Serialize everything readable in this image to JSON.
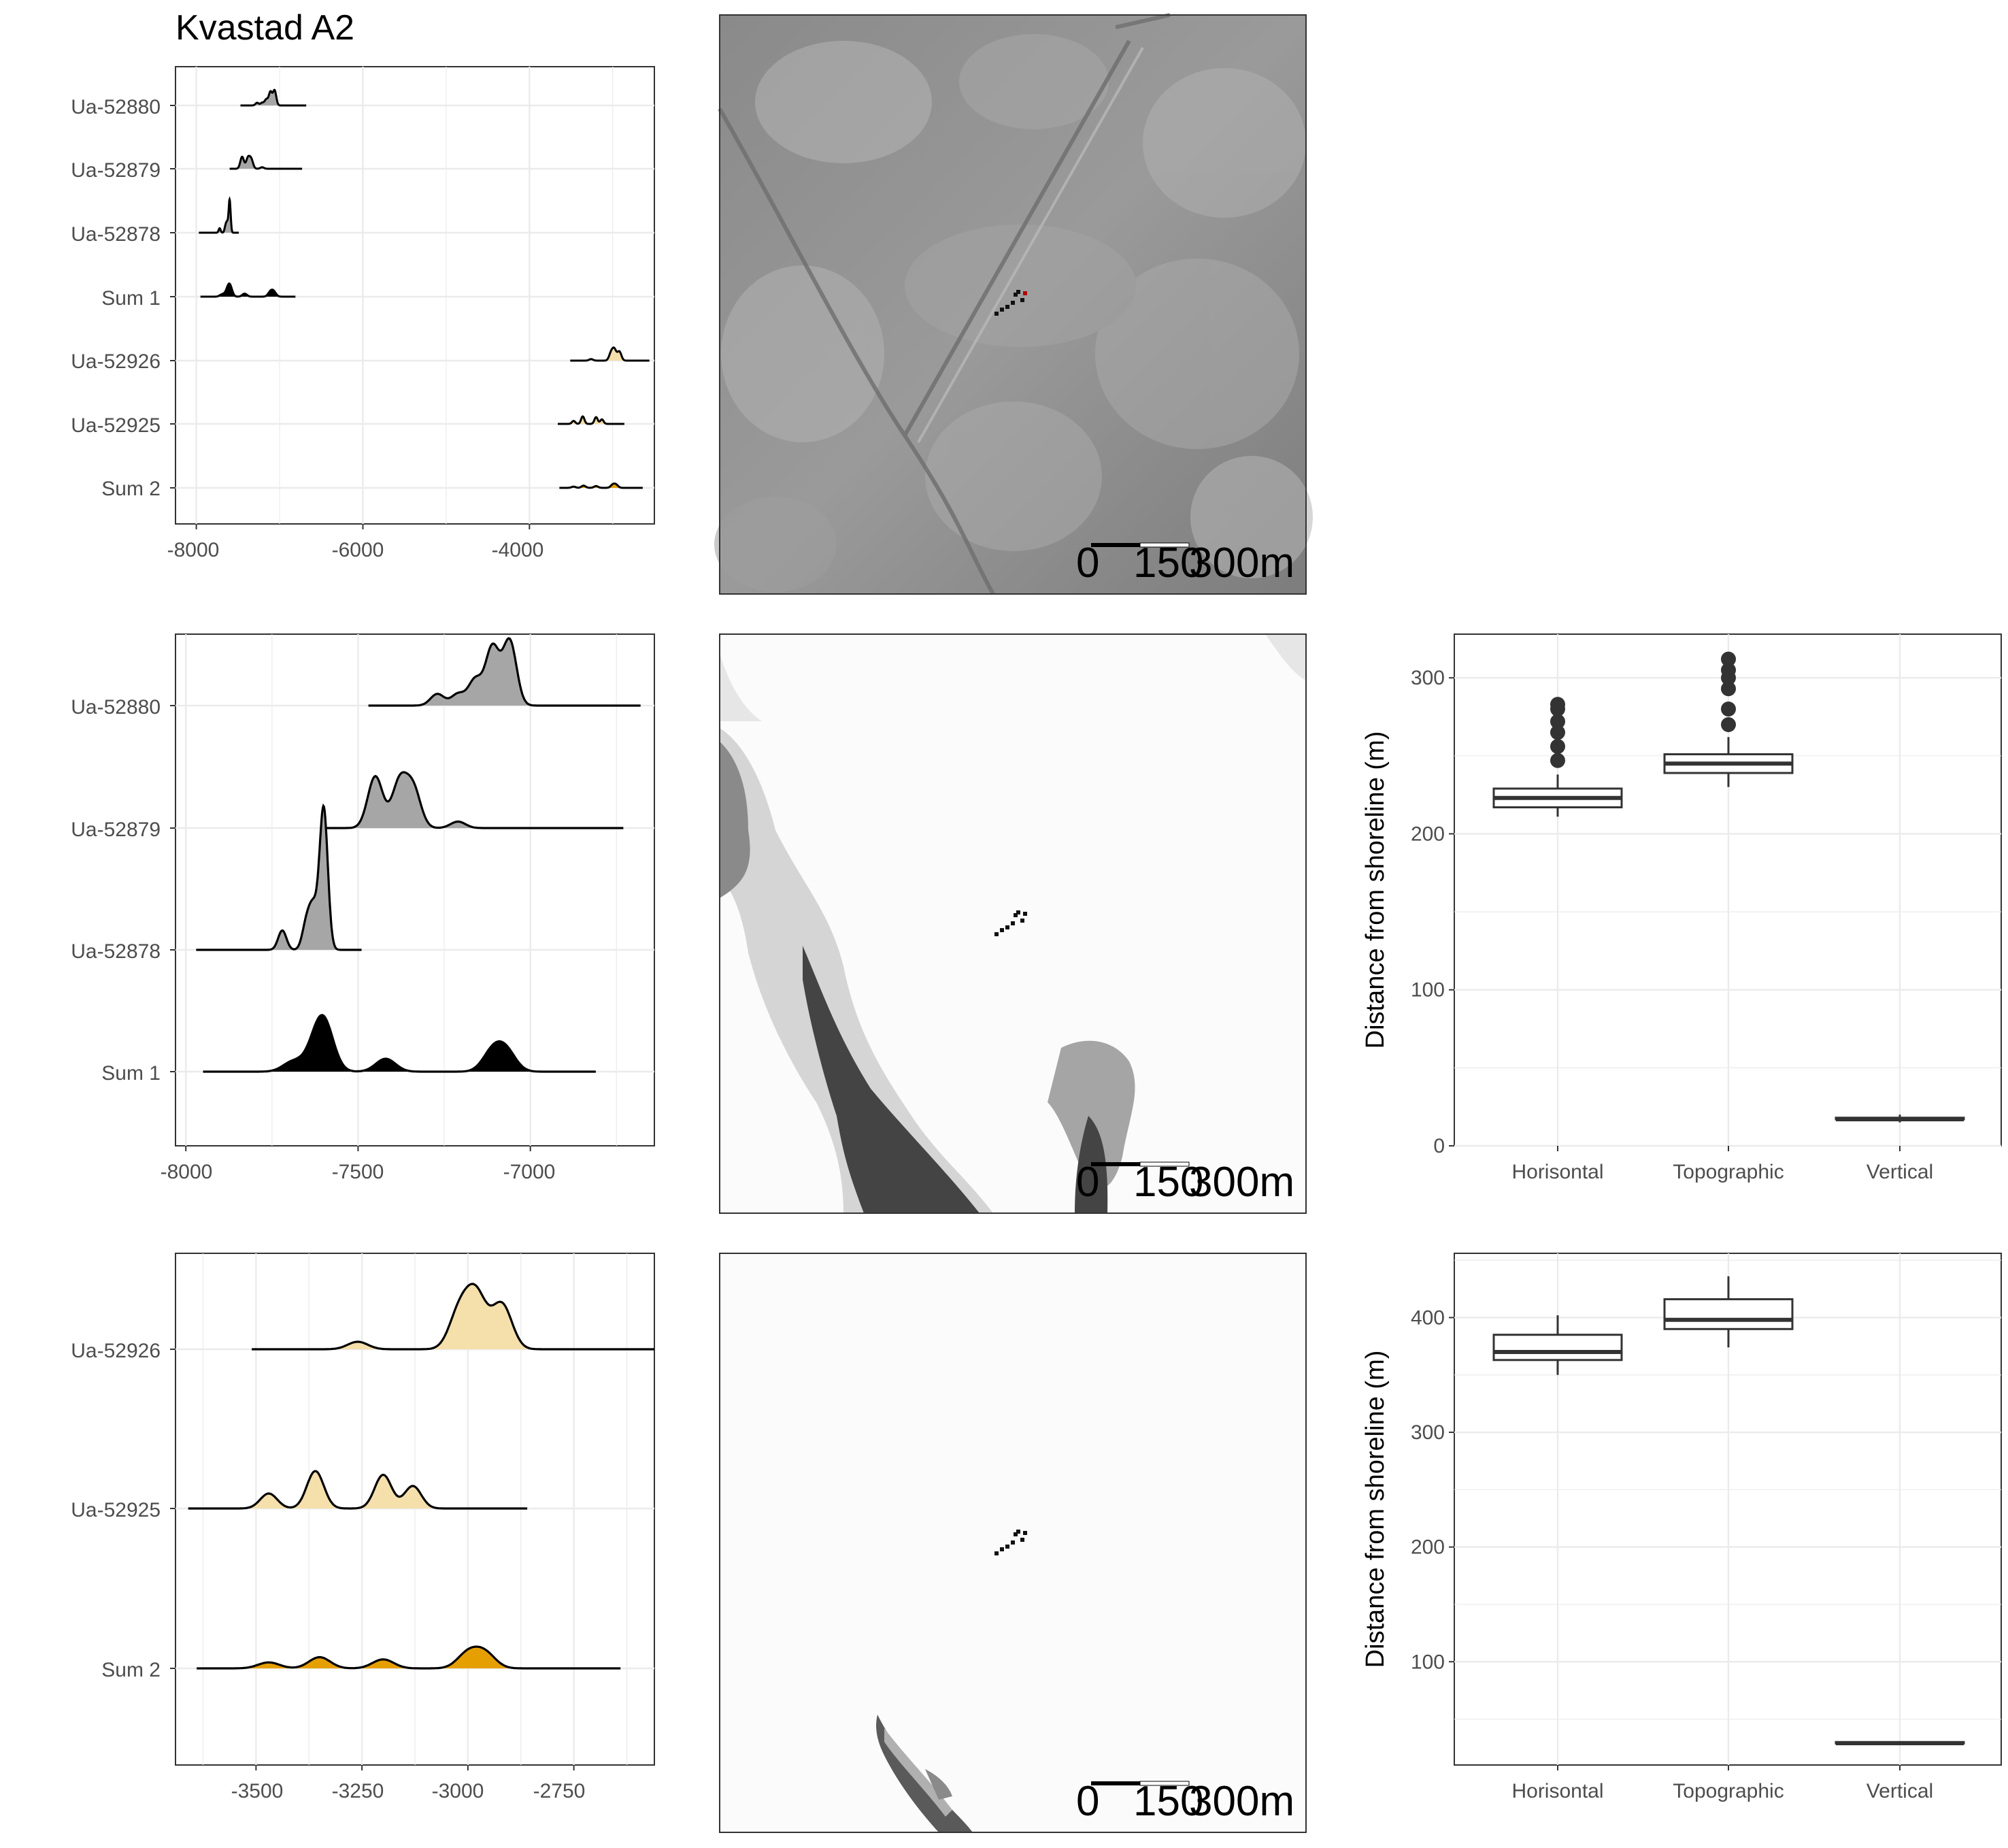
{
  "figure": {
    "title": "Kvastad A2"
  },
  "colors": {
    "group1_fill": "#a6a6a6",
    "group2_fill": "#f5dfaa",
    "sum1_fill": "#000000",
    "sum2_fill": "#e69f00",
    "grid": "#ebebeb",
    "hillshade_bg": "#8e8e8e",
    "water_dark": "#3c3c3c",
    "map_bg": "#fbfbfb"
  },
  "scalebar": {
    "labels": [
      "0",
      "150",
      "300m"
    ]
  },
  "chart_data": [
    {
      "panel": "row1-col1",
      "type": "ridgeline",
      "categories": [
        "Ua-52880",
        "Ua-52879",
        "Ua-52878",
        "Sum 1",
        "Ua-52926",
        "Ua-52925",
        "Sum 2"
      ],
      "xlim": [
        -8250,
        -2500
      ],
      "xticks": [
        -8000,
        -6000,
        -4000
      ],
      "grid": true
    },
    {
      "panel": "row2-col1",
      "type": "ridgeline",
      "categories": [
        "Ua-52880",
        "Ua-52879",
        "Ua-52878",
        "Sum 1"
      ],
      "series": [
        {
          "name": "Ua-52880",
          "range": [
            -7470,
            -6680
          ],
          "peaks": [
            [
              -7270,
              0.18
            ],
            [
              -7210,
              0.18
            ],
            [
              -7160,
              0.4
            ],
            [
              -7110,
              0.9
            ],
            [
              -7060,
              1.0
            ]
          ]
        },
        {
          "name": "Ua-52879",
          "range": [
            -7600,
            -6730
          ],
          "peaks": [
            [
              -7450,
              0.8
            ],
            [
              -7380,
              0.7
            ],
            [
              -7340,
              0.6
            ],
            [
              -7210,
              0.1
            ]
          ]
        },
        {
          "name": "Ua-52878",
          "range": [
            -7970,
            -7490
          ],
          "peaks": [
            [
              -7720,
              0.3
            ],
            [
              -7650,
              0.4
            ],
            [
              -7630,
              0.6
            ],
            [
              -7600,
              2.2
            ]
          ]
        },
        {
          "name": "Sum 1",
          "range": [
            -7950,
            -6810
          ],
          "peaks": [
            [
              -7690,
              0.15
            ],
            [
              -7630,
              0.2
            ],
            [
              -7600,
              0.75
            ],
            [
              -7420,
              0.2
            ],
            [
              -7110,
              0.3
            ],
            [
              -7070,
              0.3
            ]
          ]
        }
      ],
      "xlim": [
        -8030,
        -6640
      ],
      "xticks": [
        -8000,
        -7500,
        -7000
      ],
      "grid": true
    },
    {
      "panel": "row3-col1",
      "type": "ridgeline",
      "categories": [
        "Ua-52926",
        "Ua-52925",
        "Sum 2"
      ],
      "series": [
        {
          "name": "Ua-52926",
          "range": [
            -3510,
            -2560
          ],
          "peaks": [
            [
              -3260,
              0.1
            ],
            [
              -3020,
              0.5
            ],
            [
              -2980,
              0.7
            ],
            [
              -2920,
              0.6
            ]
          ]
        },
        {
          "name": "Ua-52925",
          "range": [
            -3660,
            -2860
          ],
          "peaks": [
            [
              -3470,
              0.2
            ],
            [
              -3360,
              0.5
            ],
            [
              -3200,
              0.45
            ],
            [
              -3130,
              0.3
            ]
          ]
        },
        {
          "name": "Sum 2",
          "range": [
            -3640,
            -2640
          ],
          "peaks": [
            [
              -3470,
              0.08
            ],
            [
              -3350,
              0.15
            ],
            [
              -3200,
              0.12
            ],
            [
              -3000,
              0.2
            ],
            [
              -2960,
              0.2
            ]
          ]
        }
      ],
      "xlim": [
        -3690,
        -2560
      ],
      "xticks": [
        -3500,
        -3250,
        -3000,
        -2750
      ],
      "grid": true
    },
    {
      "panel": "row2-col3",
      "type": "box",
      "categories": [
        "Horisontal",
        "Topographic",
        "Vertical"
      ],
      "ylabel": "Distance from shoreline (m)",
      "ylim": [
        0,
        328
      ],
      "yticks": [
        0,
        100,
        200,
        300
      ],
      "series": [
        {
          "name": "Horisontal",
          "min": 211,
          "q1": 217,
          "median": 223,
          "q3": 229,
          "max": 238,
          "outliers": [
            247,
            256,
            265,
            272,
            280,
            283
          ]
        },
        {
          "name": "Topographic",
          "min": 230,
          "q1": 239,
          "median": 245,
          "q3": 251,
          "max": 262,
          "outliers": [
            270,
            280,
            293,
            300,
            305,
            312
          ]
        },
        {
          "name": "Vertical",
          "min": 15,
          "q1": 17,
          "median": 17,
          "q3": 18,
          "max": 20,
          "outliers": []
        }
      ]
    },
    {
      "panel": "row3-col3",
      "type": "box",
      "categories": [
        "Horisontal",
        "Topographic",
        "Vertical"
      ],
      "ylabel": "Distance from shoreline (m)",
      "ylim": [
        10,
        456
      ],
      "yticks": [
        100,
        200,
        300,
        400
      ],
      "series": [
        {
          "name": "Horisontal",
          "min": 350,
          "q1": 363,
          "median": 370,
          "q3": 385,
          "max": 402,
          "outliers": []
        },
        {
          "name": "Topographic",
          "min": 374,
          "q1": 390,
          "median": 398,
          "q3": 416,
          "max": 436,
          "outliers": []
        },
        {
          "name": "Vertical",
          "min": 28,
          "q1": 29,
          "median": 29,
          "q3": 30,
          "max": 30,
          "outliers": []
        }
      ]
    }
  ]
}
